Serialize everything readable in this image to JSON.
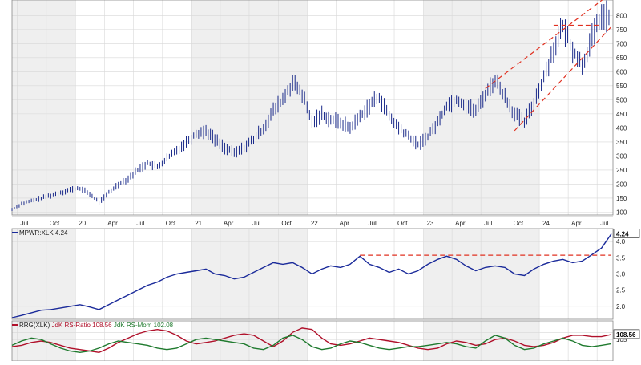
{
  "colors": {
    "price": "#1a2a8a",
    "ratio_line": "#1a2a9a",
    "rs_ratio": "#b0102a",
    "rs_mom": "#1f7a2e",
    "trend": "#e03020",
    "shade": "#efefef",
    "grid": "#d8d8d8",
    "axis_text": "#222222"
  },
  "chart_data": [
    {
      "type": "line",
      "style": "ohlc-bars",
      "title": "",
      "x_tick_labels": [
        "Jul",
        "Oct",
        "20",
        "Apr",
        "Jul",
        "Oct",
        "21",
        "Apr",
        "Jul",
        "Oct",
        "22",
        "Apr",
        "Jul",
        "Oct",
        "23",
        "Apr",
        "Jul",
        "Oct",
        "24",
        "Apr",
        "Jul"
      ],
      "y_tick_labels": [
        "800",
        "750",
        "700",
        "650",
        "600",
        "550",
        "500",
        "450",
        "400",
        "350",
        "300",
        "250",
        "200",
        "150",
        "100"
      ],
      "ylim": [
        90,
        855
      ],
      "grid": true,
      "series": [
        {
          "x": [
            "2019-06",
            "2019-07",
            "2019-08",
            "2019-09",
            "2019-10",
            "2019-11",
            "2019-12",
            "2020-01",
            "2020-02",
            "2020-03",
            "2020-04",
            "2020-05",
            "2020-06",
            "2020-07",
            "2020-08",
            "2020-09",
            "2020-10",
            "2020-11",
            "2020-12",
            "2021-01",
            "2021-02",
            "2021-03",
            "2021-04",
            "2021-05",
            "2021-06",
            "2021-07",
            "2021-08",
            "2021-09",
            "2021-10",
            "2021-11",
            "2021-12",
            "2022-01",
            "2022-02",
            "2022-03",
            "2022-04",
            "2022-05",
            "2022-06",
            "2022-07",
            "2022-08",
            "2022-09",
            "2022-10",
            "2022-11",
            "2022-12",
            "2023-01",
            "2023-02",
            "2023-03",
            "2023-04",
            "2023-05",
            "2023-06",
            "2023-07",
            "2023-08",
            "2023-09",
            "2023-10",
            "2023-11",
            "2023-12",
            "2024-01",
            "2024-02",
            "2024-03",
            "2024-04",
            "2024-05",
            "2024-06",
            "2024-07",
            "2024-08"
          ],
          "values": [
            110,
            130,
            140,
            150,
            160,
            170,
            180,
            185,
            165,
            135,
            170,
            200,
            220,
            250,
            275,
            260,
            290,
            320,
            350,
            380,
            390,
            360,
            330,
            310,
            330,
            360,
            400,
            460,
            500,
            560,
            520,
            420,
            450,
            430,
            420,
            400,
            440,
            480,
            510,
            440,
            400,
            370,
            340,
            370,
            420,
            480,
            500,
            480,
            460,
            520,
            570,
            510,
            450,
            420,
            490,
            580,
            680,
            760,
            680,
            620,
            720,
            800,
            790
          ]
        }
      ],
      "trendlines": [
        {
          "from_date": "2023-10",
          "from_value": 390,
          "to_date": "2024-08",
          "to_value": 760
        },
        {
          "from_date": "2023-07",
          "from_value": 540,
          "to_date": "2024-08",
          "to_value": 880
        },
        {
          "from_date": "2024-02",
          "from_value": 765,
          "to_date": "2024-07",
          "to_value": 765
        }
      ]
    },
    {
      "type": "line",
      "label": "MPWR:XLK 4.24",
      "last_value_label": "4.24",
      "y_tick_labels": [
        "4.0",
        "3.5",
        "3.0",
        "2.5",
        "2.0"
      ],
      "ylim": [
        1.6,
        4.4
      ],
      "grid": true,
      "series": [
        {
          "x": [
            "2019-06",
            "2019-07",
            "2019-08",
            "2019-09",
            "2019-10",
            "2019-11",
            "2019-12",
            "2020-01",
            "2020-02",
            "2020-03",
            "2020-04",
            "2020-05",
            "2020-06",
            "2020-07",
            "2020-08",
            "2020-09",
            "2020-10",
            "2020-11",
            "2020-12",
            "2021-01",
            "2021-02",
            "2021-03",
            "2021-04",
            "2021-05",
            "2021-06",
            "2021-07",
            "2021-08",
            "2021-09",
            "2021-10",
            "2021-11",
            "2021-12",
            "2022-01",
            "2022-02",
            "2022-03",
            "2022-04",
            "2022-05",
            "2022-06",
            "2022-07",
            "2022-08",
            "2022-09",
            "2022-10",
            "2022-11",
            "2022-12",
            "2023-01",
            "2023-02",
            "2023-03",
            "2023-04",
            "2023-05",
            "2023-06",
            "2023-07",
            "2023-08",
            "2023-09",
            "2023-10",
            "2023-11",
            "2023-12",
            "2024-01",
            "2024-02",
            "2024-03",
            "2024-04",
            "2024-05",
            "2024-06",
            "2024-07",
            "2024-08"
          ],
          "values": [
            1.65,
            1.72,
            1.8,
            1.88,
            1.9,
            1.95,
            2.0,
            2.05,
            1.98,
            1.9,
            2.05,
            2.2,
            2.35,
            2.5,
            2.65,
            2.75,
            2.9,
            3.0,
            3.05,
            3.1,
            3.15,
            3.0,
            2.95,
            2.85,
            2.9,
            3.05,
            3.2,
            3.35,
            3.3,
            3.35,
            3.2,
            3.0,
            3.15,
            3.25,
            3.2,
            3.3,
            3.55,
            3.3,
            3.2,
            3.05,
            3.15,
            3.0,
            3.1,
            3.3,
            3.45,
            3.55,
            3.45,
            3.25,
            3.1,
            3.2,
            3.25,
            3.2,
            3.0,
            2.95,
            3.15,
            3.3,
            3.4,
            3.45,
            3.35,
            3.4,
            3.6,
            3.8,
            4.24
          ]
        }
      ],
      "trendlines": [
        {
          "from_date": "2022-06",
          "from_value": 3.58,
          "to_date": "2024-08",
          "to_value": 3.58
        }
      ]
    },
    {
      "type": "line",
      "label": "RRG(XLK) JdK RS-Ratio 108.56 JdK RS-Mom 102.08",
      "label_prefix": "RRG(XLK) ",
      "ratio_label": "JdK RS-Ratio 108.56",
      "mom_label": " JdK RS-Mom 102.08",
      "last_value_label": "108.56",
      "y_tick_labels": [
        "110",
        "105"
      ],
      "ylim": [
        90,
        118
      ],
      "series": [
        {
          "name": "JdK RS-Ratio 108.56",
          "x": [
            "2019-06",
            "2019-07",
            "2019-08",
            "2019-09",
            "2019-10",
            "2019-11",
            "2019-12",
            "2020-01",
            "2020-02",
            "2020-03",
            "2020-04",
            "2020-05",
            "2020-06",
            "2020-07",
            "2020-08",
            "2020-09",
            "2020-10",
            "2020-11",
            "2020-12",
            "2021-01",
            "2021-02",
            "2021-03",
            "2021-04",
            "2021-05",
            "2021-06",
            "2021-07",
            "2021-08",
            "2021-09",
            "2021-10",
            "2021-11",
            "2021-12",
            "2022-01",
            "2022-02",
            "2022-03",
            "2022-04",
            "2022-05",
            "2022-06",
            "2022-07",
            "2022-08",
            "2022-09",
            "2022-10",
            "2022-11",
            "2022-12",
            "2023-01",
            "2023-02",
            "2023-03",
            "2023-04",
            "2023-05",
            "2023-06",
            "2023-07",
            "2023-08",
            "2023-09",
            "2023-10",
            "2023-11",
            "2023-12",
            "2024-01",
            "2024-02",
            "2024-03",
            "2024-04",
            "2024-05",
            "2024-06",
            "2024-07",
            "2024-08"
          ],
          "values": [
            100,
            101,
            103,
            104,
            103,
            101,
            99,
            98,
            97,
            96,
            99,
            103,
            106,
            109,
            111,
            112,
            111,
            108,
            104,
            102,
            103,
            104,
            106,
            108,
            109,
            108,
            104,
            100,
            104,
            110,
            113,
            112,
            106,
            102,
            101,
            102,
            104,
            106,
            105,
            104,
            103,
            101,
            99,
            98,
            99,
            102,
            104,
            103,
            101,
            102,
            105,
            106,
            104,
            101,
            100,
            101,
            103,
            106,
            108,
            108,
            107,
            107,
            108.56
          ]
        },
        {
          "name": "JdK RS-Mom 102.08",
          "x": [
            "2019-06",
            "2019-07",
            "2019-08",
            "2019-09",
            "2019-10",
            "2019-11",
            "2019-12",
            "2020-01",
            "2020-02",
            "2020-03",
            "2020-04",
            "2020-05",
            "2020-06",
            "2020-07",
            "2020-08",
            "2020-09",
            "2020-10",
            "2020-11",
            "2020-12",
            "2021-01",
            "2021-02",
            "2021-03",
            "2021-04",
            "2021-05",
            "2021-06",
            "2021-07",
            "2021-08",
            "2021-09",
            "2021-10",
            "2021-11",
            "2021-12",
            "2022-01",
            "2022-02",
            "2022-03",
            "2022-04",
            "2022-05",
            "2022-06",
            "2022-07",
            "2022-08",
            "2022-09",
            "2022-10",
            "2022-11",
            "2022-12",
            "2023-01",
            "2023-02",
            "2023-03",
            "2023-04",
            "2023-05",
            "2023-06",
            "2023-07",
            "2023-08",
            "2023-09",
            "2023-10",
            "2023-11",
            "2023-12",
            "2024-01",
            "2024-02",
            "2024-03",
            "2024-04",
            "2024-05",
            "2024-06",
            "2024-07",
            "2024-08"
          ],
          "values": [
            101,
            104,
            106,
            105,
            102,
            99,
            97,
            96,
            97,
            99,
            102,
            104,
            103,
            102,
            101,
            99,
            98,
            99,
            102,
            105,
            106,
            105,
            104,
            103,
            102,
            99,
            98,
            101,
            106,
            108,
            105,
            100,
            98,
            99,
            102,
            104,
            103,
            101,
            99,
            98,
            99,
            100,
            100,
            101,
            102,
            103,
            102,
            100,
            99,
            104,
            108,
            106,
            101,
            98,
            99,
            102,
            104,
            106,
            104,
            101,
            100,
            101,
            102.08
          ]
        }
      ]
    }
  ]
}
